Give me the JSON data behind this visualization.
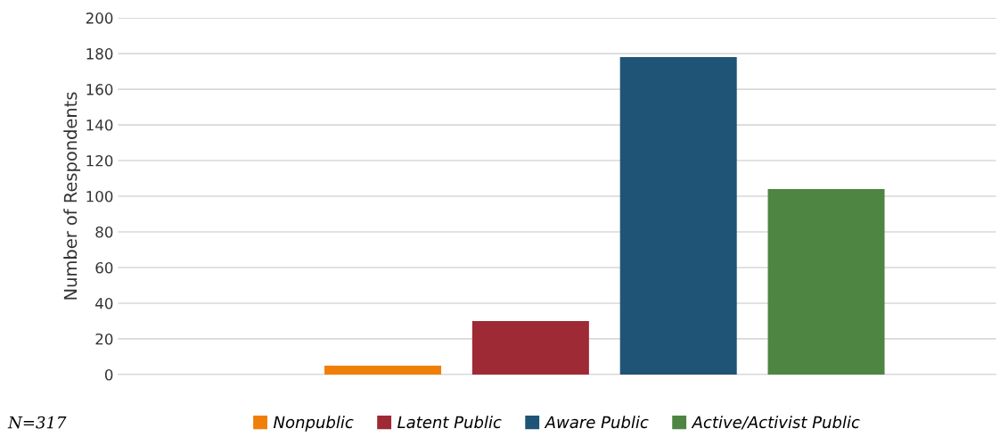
{
  "chart_data": {
    "type": "bar",
    "ylabel": "Number of Respondents",
    "categories": [
      null
    ],
    "series": [
      {
        "name": "Nonpublic",
        "color": "#f07f09",
        "values": [
          5
        ]
      },
      {
        "name": "Latent Public",
        "color": "#9e2a35",
        "values": [
          30
        ]
      },
      {
        "name": "Aware Public",
        "color": "#1f5477",
        "values": [
          178
        ]
      },
      {
        "name": "Active/Activist Public",
        "color": "#4e8542",
        "values": [
          104
        ]
      }
    ],
    "ylim": [
      0,
      200
    ],
    "yticks": [
      0,
      20,
      40,
      60,
      80,
      100,
      120,
      140,
      160,
      180,
      200
    ],
    "grid": "y",
    "legend": "bottom",
    "annotations": [
      "N=317"
    ]
  }
}
